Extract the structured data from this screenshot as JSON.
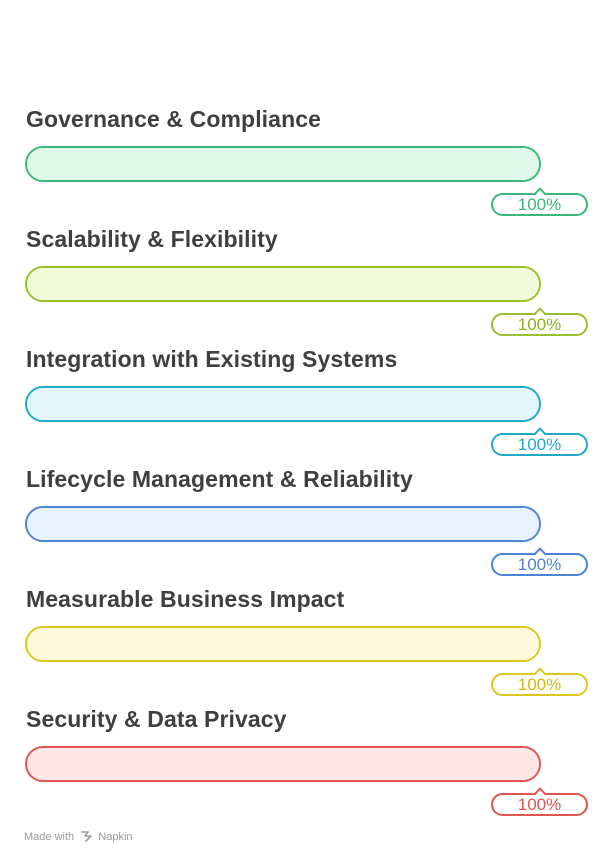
{
  "items": [
    {
      "label": "Governance & Compliance",
      "value": 100,
      "display": "100%",
      "color": "#3cb97a",
      "fill": "#dff8ea",
      "text_color": "#3cb97a"
    },
    {
      "label": "Scalability & Flexibility",
      "value": 100,
      "display": "100%",
      "color": "#9bbf2e",
      "fill": "#f1fbd9",
      "text_color": "#8db320"
    },
    {
      "label": "Integration with Existing Systems",
      "value": 100,
      "display": "100%",
      "color": "#22a8c8",
      "fill": "#e3f6fb",
      "text_color": "#22a8c8"
    },
    {
      "label": "Lifecycle Management & Reliability",
      "value": 100,
      "display": "100%",
      "color": "#4c84d6",
      "fill": "#e9f1fd",
      "text_color": "#4c84d6"
    },
    {
      "label": "Measurable Business Impact",
      "value": 100,
      "display": "100%",
      "color": "#ddc71e",
      "fill": "#fdf9dc",
      "text_color": "#d1ba0f"
    },
    {
      "label": "Security & Data Privacy",
      "value": 100,
      "display": "100%",
      "color": "#df5650",
      "fill": "#fde6e5",
      "text_color": "#df5650"
    }
  ],
  "footer": {
    "made_with": "Made with",
    "brand": "Napkin",
    "logo_icon": "napkin-logo-icon"
  }
}
